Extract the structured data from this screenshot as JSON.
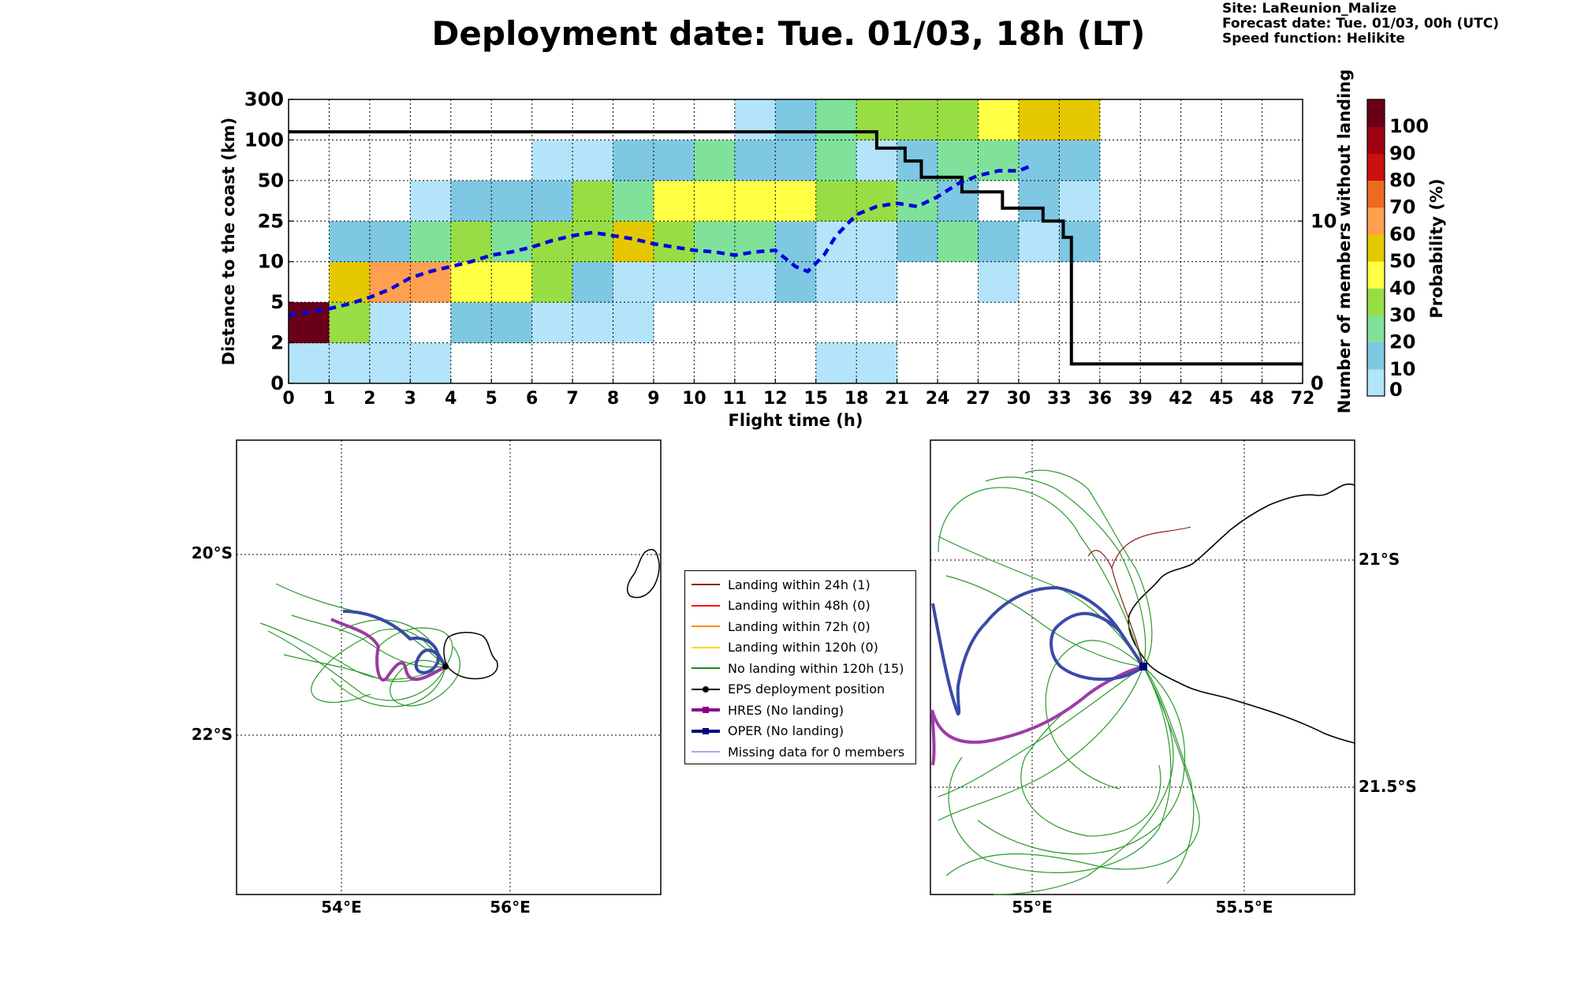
{
  "header": {
    "title": "Deployment date: Tue. 01/03, 18h (LT)",
    "site": "Site: LaReunion_Malize",
    "forecast_date": "Forecast date: Tue. 01/03, 00h (UTC)",
    "speed_function": "Speed function: Helikite"
  },
  "chart_data": [
    {
      "type": "heatmap",
      "xlabel": "Flight time (h)",
      "ylabel": "Distance to the coast (km)",
      "y2label": "Number of members without landing",
      "colorbar_label": "Probability (%)",
      "x_categories": [
        "0",
        "1",
        "2",
        "3",
        "4",
        "5",
        "6",
        "7",
        "8",
        "9",
        "10",
        "11",
        "12",
        "15",
        "18",
        "21",
        "24",
        "27",
        "30",
        "33",
        "36",
        "39",
        "42",
        "45",
        "48",
        "72"
      ],
      "y_categories": [
        "0",
        "2",
        "5",
        "10",
        "25",
        "50",
        "100",
        "300"
      ],
      "y2_ticks": [
        "0",
        "10"
      ],
      "y2_range": [
        0,
        17.5
      ],
      "colorbar_ticks": [
        "0",
        "10",
        "20",
        "30",
        "40",
        "50",
        "60",
        "70",
        "80",
        "90",
        "100"
      ],
      "colorbar_colors": [
        "#b4e4fa",
        "#7ec8e3",
        "#80e29a",
        "#99dd44",
        "#ffff44",
        "#e6c800",
        "#ffa050",
        "#ee6a20",
        "#cc1010",
        "#a00010",
        "#6a0018"
      ],
      "grid": true,
      "cells": [
        [
          0,
          0,
          0
        ],
        [
          1,
          0,
          0
        ],
        [
          2,
          0,
          0
        ],
        [
          3,
          0,
          0
        ],
        [
          13,
          0,
          0
        ],
        [
          14,
          0,
          0
        ],
        [
          0,
          1,
          100
        ],
        [
          1,
          1,
          30
        ],
        [
          2,
          1,
          0
        ],
        [
          4,
          1,
          10
        ],
        [
          5,
          1,
          10
        ],
        [
          6,
          1,
          0
        ],
        [
          7,
          1,
          0
        ],
        [
          8,
          1,
          0
        ],
        [
          1,
          2,
          50
        ],
        [
          2,
          2,
          60
        ],
        [
          3,
          2,
          60
        ],
        [
          4,
          2,
          40
        ],
        [
          5,
          2,
          40
        ],
        [
          6,
          2,
          30
        ],
        [
          7,
          2,
          10
        ],
        [
          8,
          2,
          0
        ],
        [
          9,
          2,
          0
        ],
        [
          10,
          2,
          0
        ],
        [
          11,
          2,
          0
        ],
        [
          12,
          2,
          10
        ],
        [
          13,
          2,
          0
        ],
        [
          14,
          2,
          0
        ],
        [
          17,
          2,
          0
        ],
        [
          1,
          3,
          10
        ],
        [
          2,
          3,
          10
        ],
        [
          3,
          3,
          20
        ],
        [
          4,
          3,
          30
        ],
        [
          5,
          3,
          20
        ],
        [
          6,
          3,
          30
        ],
        [
          7,
          3,
          30
        ],
        [
          8,
          3,
          50
        ],
        [
          9,
          3,
          30
        ],
        [
          10,
          3,
          20
        ],
        [
          11,
          3,
          20
        ],
        [
          12,
          3,
          10
        ],
        [
          13,
          3,
          0
        ],
        [
          14,
          3,
          0
        ],
        [
          15,
          3,
          10
        ],
        [
          16,
          3,
          20
        ],
        [
          17,
          3,
          10
        ],
        [
          18,
          3,
          0
        ],
        [
          19,
          3,
          10
        ],
        [
          3,
          4,
          0
        ],
        [
          4,
          4,
          10
        ],
        [
          5,
          4,
          10
        ],
        [
          6,
          4,
          10
        ],
        [
          7,
          4,
          30
        ],
        [
          8,
          4,
          20
        ],
        [
          9,
          4,
          40
        ],
        [
          10,
          4,
          40
        ],
        [
          11,
          4,
          40
        ],
        [
          12,
          4,
          40
        ],
        [
          13,
          4,
          30
        ],
        [
          14,
          4,
          30
        ],
        [
          15,
          4,
          20
        ],
        [
          16,
          4,
          10
        ],
        [
          18,
          4,
          10
        ],
        [
          19,
          4,
          0
        ],
        [
          6,
          5,
          0
        ],
        [
          7,
          5,
          0
        ],
        [
          8,
          5,
          10
        ],
        [
          9,
          5,
          10
        ],
        [
          10,
          5,
          20
        ],
        [
          11,
          5,
          10
        ],
        [
          12,
          5,
          10
        ],
        [
          13,
          5,
          20
        ],
        [
          14,
          5,
          0
        ],
        [
          15,
          5,
          10
        ],
        [
          16,
          5,
          20
        ],
        [
          17,
          5,
          20
        ],
        [
          18,
          5,
          10
        ],
        [
          19,
          5,
          10
        ],
        [
          11,
          6,
          0
        ],
        [
          12,
          6,
          10
        ],
        [
          13,
          6,
          20
        ],
        [
          14,
          6,
          30
        ],
        [
          15,
          6,
          30
        ],
        [
          16,
          6,
          30
        ],
        [
          17,
          6,
          40
        ],
        [
          18,
          6,
          50
        ],
        [
          19,
          6,
          50
        ]
      ],
      "series": [
        {
          "name": "Number of members without landing",
          "style": "black-step",
          "points": [
            [
              0,
              15.5
            ],
            [
              14.5,
              15.5
            ],
            [
              14.5,
              14.5
            ],
            [
              15.2,
              14.5
            ],
            [
              15.2,
              13.7
            ],
            [
              15.6,
              13.7
            ],
            [
              15.6,
              12.7
            ],
            [
              16.6,
              12.7
            ],
            [
              16.6,
              11.8
            ],
            [
              17.6,
              11.8
            ],
            [
              17.6,
              10.8
            ],
            [
              18.6,
              10.8
            ],
            [
              18.6,
              10
            ],
            [
              19.1,
              10
            ],
            [
              19.1,
              9
            ],
            [
              19.3,
              9
            ],
            [
              19.3,
              1.2
            ],
            [
              25,
              1.2
            ]
          ]
        },
        {
          "name": "Mean distance",
          "style": "blue-dashed",
          "points": [
            [
              0,
              4.2
            ],
            [
              0.5,
              4.4
            ],
            [
              1,
              4.6
            ],
            [
              1.5,
              4.9
            ],
            [
              2,
              5.3
            ],
            [
              2.5,
              5.8
            ],
            [
              3,
              6.5
            ],
            [
              3.5,
              6.9
            ],
            [
              4,
              7.2
            ],
            [
              4.5,
              7.5
            ],
            [
              5,
              7.9
            ],
            [
              5.5,
              8.1
            ],
            [
              6,
              8.4
            ],
            [
              6.5,
              8.8
            ],
            [
              7,
              9.1
            ],
            [
              7.5,
              9.3
            ],
            [
              8,
              9.1
            ],
            [
              8.5,
              8.9
            ],
            [
              9,
              8.6
            ],
            [
              9.5,
              8.4
            ],
            [
              10,
              8.2
            ],
            [
              10.5,
              8.1
            ],
            [
              11,
              7.9
            ],
            [
              11.5,
              8.1
            ],
            [
              12,
              8.2
            ],
            [
              12.5,
              7.2
            ],
            [
              12.8,
              6.9
            ],
            [
              13.2,
              7.9
            ],
            [
              13.5,
              9.1
            ],
            [
              14,
              10.4
            ],
            [
              14.5,
              10.9
            ],
            [
              15,
              11.1
            ],
            [
              15.5,
              10.9
            ],
            [
              16,
              11.5
            ],
            [
              16.5,
              12.3
            ],
            [
              17,
              12.8
            ],
            [
              17.5,
              13.1
            ],
            [
              18,
              13.1
            ],
            [
              18.3,
              13.4
            ]
          ]
        }
      ]
    },
    {
      "type": "map",
      "x_ticks": [
        "54°E",
        "56°E"
      ],
      "y_ticks": [
        "20°S",
        "22°S"
      ]
    },
    {
      "type": "map",
      "x_ticks": [
        "55°E",
        "55.5°E"
      ],
      "y_ticks": [
        "21°S",
        "21.5°S"
      ]
    }
  ],
  "legend": {
    "items": [
      {
        "label": "Landing within 24h (1)",
        "color": "#8b1a1a",
        "style": "line"
      },
      {
        "label": "Landing within 48h (0)",
        "color": "#ff1010",
        "style": "line"
      },
      {
        "label": "Landing within 72h (0)",
        "color": "#ff8c00",
        "style": "line"
      },
      {
        "label": "Landing within 120h (0)",
        "color": "#ffd700",
        "style": "line"
      },
      {
        "label": "No landing within 120h (15)",
        "color": "#1a8a1a",
        "style": "line"
      },
      {
        "label": "EPS deployment position",
        "color": "#000000",
        "style": "dot"
      },
      {
        "label": "HRES (No landing)",
        "color": "#8b008b",
        "style": "square-thick"
      },
      {
        "label": "OPER (No landing)",
        "color": "#000080",
        "style": "square-thick"
      },
      {
        "label": "Missing data for 0 members",
        "color": "#4a4aee",
        "style": "thin"
      }
    ]
  }
}
